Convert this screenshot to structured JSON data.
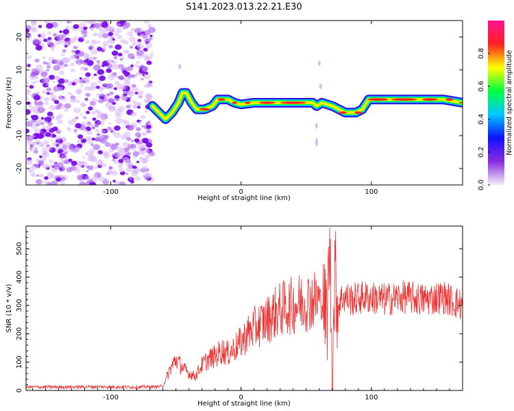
{
  "title": "S141.2023.013.22.21.E30",
  "chart_data": [
    {
      "type": "heatmap",
      "xlabel": "Height of straight line (km)",
      "ylabel": "Frequency (Hz)",
      "xlim": [
        -165,
        170
      ],
      "ylim": [
        -25,
        25
      ],
      "xticks": [
        -100,
        0,
        100
      ],
      "yticks": [
        -20,
        -10,
        0,
        10,
        20
      ],
      "noise_region_x": [
        -165,
        -68
      ],
      "ridge": [
        {
          "x": -68,
          "y": -1
        },
        {
          "x": -63,
          "y": -3
        },
        {
          "x": -58,
          "y": -5
        },
        {
          "x": -53,
          "y": -3
        },
        {
          "x": -48,
          "y": 0
        },
        {
          "x": -45,
          "y": 3
        },
        {
          "x": -42,
          "y": 3
        },
        {
          "x": -38,
          "y": 0
        },
        {
          "x": -34,
          "y": -2
        },
        {
          "x": -28,
          "y": -2
        },
        {
          "x": -22,
          "y": -1
        },
        {
          "x": -18,
          "y": 1
        },
        {
          "x": -10,
          "y": 1
        },
        {
          "x": -5,
          "y": 0
        },
        {
          "x": 0,
          "y": -0.5
        },
        {
          "x": 10,
          "y": 0
        },
        {
          "x": 30,
          "y": 0
        },
        {
          "x": 55,
          "y": 0
        },
        {
          "x": 58,
          "y": -1
        },
        {
          "x": 62,
          "y": 0
        },
        {
          "x": 70,
          "y": -1
        },
        {
          "x": 80,
          "y": -3
        },
        {
          "x": 88,
          "y": -3
        },
        {
          "x": 93,
          "y": -2
        },
        {
          "x": 98,
          "y": 1
        },
        {
          "x": 110,
          "y": 1
        },
        {
          "x": 125,
          "y": 1
        },
        {
          "x": 140,
          "y": 1
        },
        {
          "x": 155,
          "y": 1
        },
        {
          "x": 170,
          "y": 0
        }
      ],
      "colorbar": {
        "label": "Normalized spectral amplitude",
        "ticks": [
          "0.0",
          "0.2",
          "0.4",
          "0.6",
          "0.8"
        ],
        "tick_values": [
          0,
          0.2,
          0.4,
          0.6,
          0.8
        ],
        "range": [
          0,
          1
        ],
        "colors": [
          "#f4eefc",
          "#8a2be2",
          "#1010ff",
          "#00c8ff",
          "#00ff40",
          "#ffff00",
          "#ff2020",
          "#ff1493"
        ]
      }
    },
    {
      "type": "line",
      "xlabel": "Height of straight line (km)",
      "ylabel": "SNR (10 * v/v)",
      "xlim": [
        -165,
        170
      ],
      "ylim": [
        0,
        580
      ],
      "xticks": [
        -100,
        0,
        100
      ],
      "yticks": [
        0,
        100,
        200,
        300,
        400,
        500
      ],
      "color": "#ee3030",
      "series": [
        {
          "x": [
            -165,
            -140,
            -110,
            -80,
            -60,
            -55,
            -50,
            -45,
            -40,
            -35,
            -30,
            -25,
            -20,
            -15,
            -10,
            -5,
            0,
            5,
            10,
            15,
            20,
            25,
            30,
            35,
            40,
            45,
            50,
            55,
            60,
            63,
            66,
            68,
            70,
            72,
            74,
            78,
            85,
            95,
            110,
            125,
            140,
            155,
            170
          ],
          "y": [
            12,
            12,
            13,
            12,
            14,
            70,
            110,
            80,
            60,
            50,
            90,
            110,
            120,
            140,
            130,
            150,
            170,
            200,
            220,
            235,
            250,
            270,
            285,
            295,
            300,
            310,
            315,
            320,
            320,
            300,
            250,
            560,
            20,
            430,
            300,
            330,
            320,
            330,
            320,
            330,
            320,
            330,
            300
          ]
        }
      ]
    }
  ]
}
